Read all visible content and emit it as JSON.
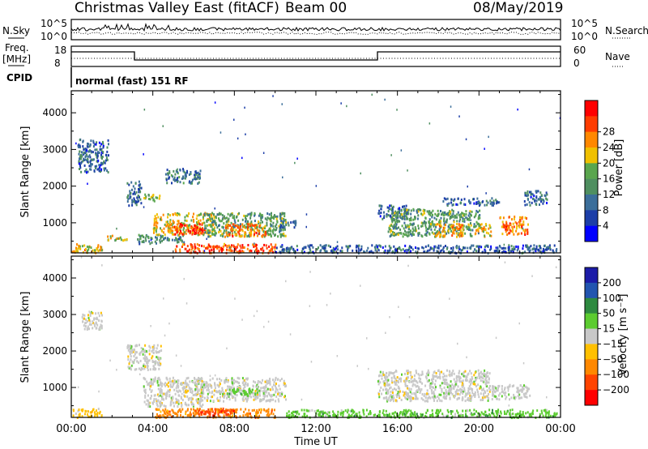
{
  "header": {
    "radar": "Christmas Valley East (fitACF)",
    "beam": "Beam 00",
    "date": "08/May/2019"
  },
  "strip_labels": {
    "nsky": "N.Sky",
    "nsearch": "N.Search",
    "freq_top": "Freq.",
    "freq_unit": "[MHz]",
    "nave": "Nave",
    "cpid": "CPID",
    "cpid_value": "normal (fast) 151 RF"
  },
  "strip_ticks": {
    "noise_left": [
      "10^5",
      "10^0"
    ],
    "noise_right": [
      "10^5",
      "10^0"
    ],
    "freq_left": [
      "18",
      "8"
    ],
    "freq_right": [
      "60",
      "0"
    ]
  },
  "colors": {
    "power": [
      "#0000ff",
      "#1c3ea8",
      "#3b6e9a",
      "#4f8f60",
      "#5aa64e",
      "#f0c000",
      "#ff8800",
      "#ff3c00",
      "#ff0000"
    ],
    "velocity": [
      "#1c1ca8",
      "#2255b0",
      "#2e8a40",
      "#5ccc30",
      "#c8c8c8",
      "#ffc000",
      "#ff8800",
      "#ff4400",
      "#ff0000"
    ]
  },
  "chart_data": [
    {
      "type": "heatmap",
      "name": "Power panel",
      "xlabel": "Time UT",
      "ylabel": "Slant Range [km]",
      "x_ticks": [
        "00:00",
        "04:00",
        "08:00",
        "12:00",
        "16:00",
        "20:00",
        "00:00"
      ],
      "xlim": [
        0,
        24
      ],
      "y_ticks": [
        1000,
        2000,
        3000,
        4000
      ],
      "ylim": [
        180,
        4600
      ],
      "colorbar": {
        "label": "Power [dB]",
        "ticks": [
          4,
          8,
          12,
          16,
          20,
          24,
          28
        ],
        "range": [
          0,
          32
        ]
      },
      "regions": [
        {
          "t": [
            0.3,
            1.8
          ],
          "r": [
            2400,
            3300
          ],
          "level": 8
        },
        {
          "t": [
            1.7,
            2.7
          ],
          "r": [
            550,
            700
          ],
          "level": 18
        },
        {
          "t": [
            2.7,
            3.4
          ],
          "r": [
            1500,
            2200
          ],
          "level": 8
        },
        {
          "t": [
            3.5,
            4.4
          ],
          "r": [
            1600,
            1800
          ],
          "level": 16
        },
        {
          "t": [
            4.6,
            6.3
          ],
          "r": [
            2100,
            2500
          ],
          "level": 10
        },
        {
          "t": [
            3.2,
            5.5
          ],
          "r": [
            450,
            700
          ],
          "level": 12
        },
        {
          "t": [
            4.0,
            7.0
          ],
          "r": [
            700,
            1300
          ],
          "level": 20
        },
        {
          "t": [
            5.0,
            6.5
          ],
          "r": [
            700,
            1000
          ],
          "level": 28
        },
        {
          "t": [
            6.5,
            10.5
          ],
          "r": [
            650,
            1300
          ],
          "level": 14
        },
        {
          "t": [
            7.5,
            9.5
          ],
          "r": [
            650,
            1000
          ],
          "level": 24
        },
        {
          "t": [
            10.2,
            11.0
          ],
          "r": [
            900,
            1100
          ],
          "level": 8
        },
        {
          "t": [
            5.0,
            10.0
          ],
          "r": [
            200,
            450
          ],
          "level": 26
        },
        {
          "t": [
            15.0,
            16.5
          ],
          "r": [
            1100,
            1500
          ],
          "level": 8
        },
        {
          "t": [
            15.5,
            20.0
          ],
          "r": [
            650,
            1400
          ],
          "level": 14
        },
        {
          "t": [
            17.8,
            19.2
          ],
          "r": [
            650,
            1000
          ],
          "level": 22
        },
        {
          "t": [
            19.8,
            20.6
          ],
          "r": [
            650,
            1000
          ],
          "level": 20
        },
        {
          "t": [
            21.0,
            22.4
          ],
          "r": [
            700,
            1200
          ],
          "level": 24
        },
        {
          "t": [
            18.2,
            21.0
          ],
          "r": [
            1500,
            1700
          ],
          "level": 8
        },
        {
          "t": [
            22.2,
            23.4
          ],
          "r": [
            1500,
            1900
          ],
          "level": 8
        },
        {
          "t": [
            10.0,
            23.8
          ],
          "r": [
            200,
            420
          ],
          "level": 8
        },
        {
          "t": [
            0.0,
            1.5
          ],
          "r": [
            200,
            450
          ],
          "level": 20
        }
      ]
    },
    {
      "type": "heatmap",
      "name": "Velocity panel",
      "xlabel": "Time UT",
      "ylabel": "Slant Range [km]",
      "x_ticks": [
        "00:00",
        "04:00",
        "08:00",
        "12:00",
        "16:00",
        "20:00",
        "00:00"
      ],
      "xlim": [
        0,
        24
      ],
      "y_ticks": [
        1000,
        2000,
        3000,
        4000
      ],
      "ylim": [
        180,
        4600
      ],
      "colorbar": {
        "label": "Velocity [m s⁻¹]",
        "ticks": [
          "200",
          "100",
          "50",
          "15",
          "−15",
          "−50",
          "−100",
          "−200"
        ]
      },
      "regions": [
        {
          "t": [
            0.5,
            1.5
          ],
          "r": [
            2600,
            3100
          ],
          "level": 4
        },
        {
          "t": [
            2.7,
            4.4
          ],
          "r": [
            1500,
            2200
          ],
          "level": 4
        },
        {
          "t": [
            3.5,
            6.5
          ],
          "r": [
            500,
            1300
          ],
          "level": 4
        },
        {
          "t": [
            6.0,
            10.5
          ],
          "r": [
            650,
            1300
          ],
          "level": 4
        },
        {
          "t": [
            7.6,
            9.2
          ],
          "r": [
            800,
            1000
          ],
          "level": 3
        },
        {
          "t": [
            4.0,
            10.0
          ],
          "r": [
            200,
            450
          ],
          "level": 6
        },
        {
          "t": [
            6.0,
            8.0
          ],
          "r": [
            250,
            450
          ],
          "level": 7
        },
        {
          "t": [
            15.0,
            20.5
          ],
          "r": [
            650,
            1500
          ],
          "level": 4
        },
        {
          "t": [
            20.5,
            22.5
          ],
          "r": [
            700,
            1100
          ],
          "level": 4
        },
        {
          "t": [
            10.5,
            23.8
          ],
          "r": [
            200,
            420
          ],
          "level": 3
        },
        {
          "t": [
            0.0,
            1.5
          ],
          "r": [
            200,
            450
          ],
          "level": 5
        }
      ]
    }
  ]
}
